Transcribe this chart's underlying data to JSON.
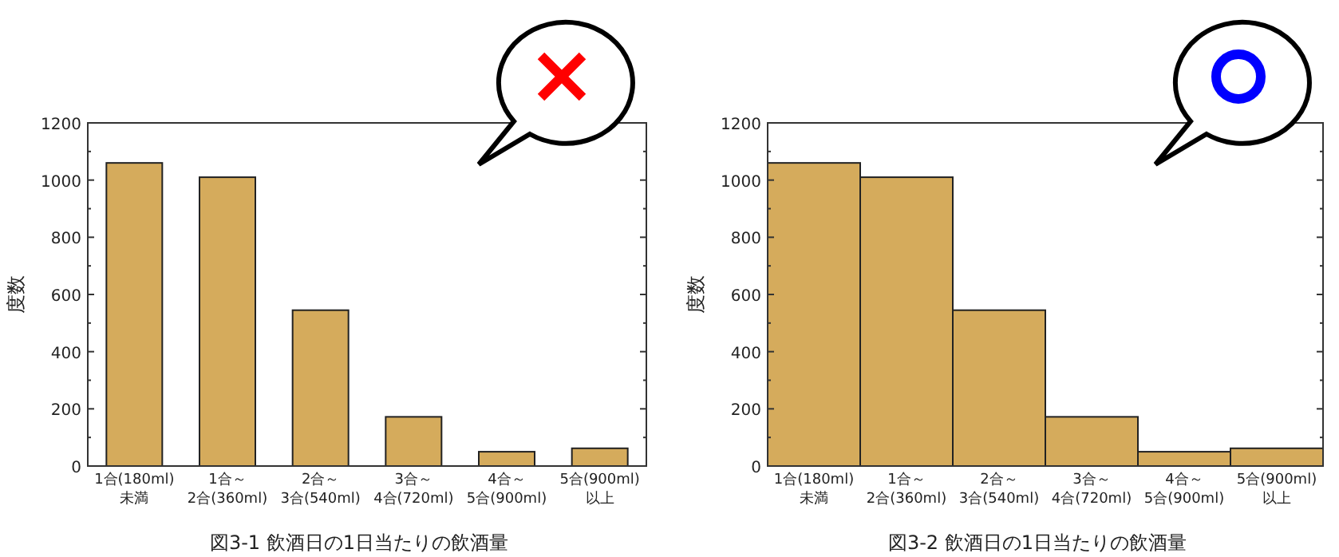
{
  "chart_data": [
    {
      "type": "bar",
      "title": "図3-1 飲酒日の1日当たりの飲酒量",
      "ylabel": "度数",
      "categories": [
        "1合(180ml) 未満",
        "1合～ 2合(360ml)",
        "2合～ 3合(540ml)",
        "3合～ 4合(720ml)",
        "4合～ 5合(900ml)",
        "5合(900ml) 以上"
      ],
      "values": [
        1060,
        1010,
        545,
        172,
        50,
        62
      ],
      "color": "#d5ab5c",
      "ylim": [
        0,
        1200
      ],
      "yticks": [
        0,
        200,
        400,
        600,
        800,
        1000,
        1200
      ],
      "grid": false
    },
    {
      "type": "bar",
      "title": "図3-2 飲酒日の1日当たりの飲酒量",
      "ylabel": "度数",
      "categories": [
        "1合(180ml) 未満",
        "1合～ 2合(360ml)",
        "2合～ 3合(540ml)",
        "3合～ 4合(720ml)",
        "4合～ 5合(900ml)",
        "5合(900ml) 以上"
      ],
      "values": [
        1060,
        1010,
        545,
        172,
        50,
        62
      ],
      "color": "#d5ab5c",
      "ylim": [
        0,
        1200
      ],
      "yticks": [
        0,
        200,
        400,
        600,
        800,
        1000,
        1200
      ],
      "grid": false
    }
  ]
}
